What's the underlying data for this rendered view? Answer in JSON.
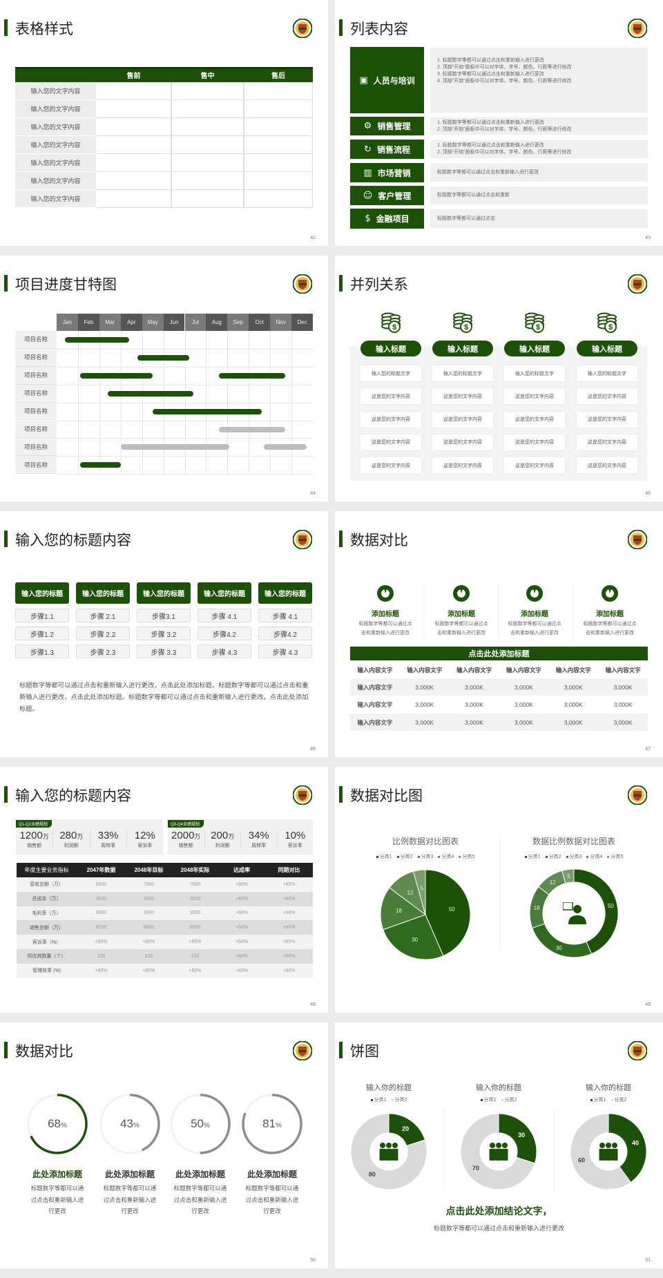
{
  "colors": {
    "primary": "#1b5207",
    "gray_bar": "#bdbdbd",
    "ring_gray": "#8c8c8c",
    "light": "#f2f2f2"
  },
  "logo": "school-emblem-icon",
  "s42": {
    "title": "表格样式",
    "page": "42",
    "headers": [
      "",
      "售前",
      "售中",
      "售后"
    ],
    "rows": [
      "输入您的文字内容",
      "输入您的文字内容",
      "输入您的文字内容",
      "输入您的文字内容",
      "输入您的文字内容",
      "输入您的文字内容",
      "输入您的文字内容"
    ]
  },
  "s43": {
    "title": "列表内容",
    "page": "43",
    "items": [
      {
        "label": "人员与培训",
        "icon": "presentation-icon",
        "lines": [
          "1.  标题数字等都可以通过点击和重新输入进行更改",
          "2.  顶部“开始”面板中可以对字体、字号、颜色、行距等进行修改",
          "3.  标题数字等都可以通过点击和重新输入进行更改",
          "4.  顶部“开始”面板中可以对字体、字号、颜色、行距等进行修改"
        ]
      },
      {
        "label": "销售管理",
        "icon": "user-gear-icon",
        "lines": [
          "1.  标题数字等都可以通过点击和重新输入进行更改",
          "2.  顶部“开始”面板中可以对字体、字号、颜色、行距等进行修改"
        ]
      },
      {
        "label": "销售流程",
        "icon": "cycle-icon",
        "lines": [
          "1.  标题数字等都可以通过点击和重新输入进行更改",
          "2.  顶部“开始”面板中可以对字体、字号、颜色、行距等进行修改"
        ]
      },
      {
        "label": "市场营销",
        "icon": "bar-chart-icon",
        "lines": [
          "标题数字等都可以通过点击和重新输入进行更改"
        ]
      },
      {
        "label": "客户管理",
        "icon": "users-icon",
        "lines": [
          "标题数字等都可以通过点击和重新"
        ]
      },
      {
        "label": "金融项目",
        "icon": "money-hand-icon",
        "lines": [
          "标题数字等都可以通过点击"
        ]
      }
    ]
  },
  "s44": {
    "title": "项目进度甘特图",
    "page": "44"
  },
  "s45": {
    "title": "并列关系",
    "page": "45",
    "columns": [
      {
        "heading": "输入标题",
        "cells": [
          "输入您的标题文字",
          "这是您的文字内容",
          "这是您的文字内容",
          "这是您的文字内容",
          "这是您的文字内容"
        ]
      },
      {
        "heading": "输入标题",
        "cells": [
          "输入您的标题文字",
          "这是您的文字内容",
          "这是您的文字内容",
          "这是您的文字内容",
          "这是您的文字内容"
        ]
      },
      {
        "heading": "输入标题",
        "cells": [
          "输入您的标题文字",
          "这是您的文字内容",
          "这是您的文字内容",
          "这是您的文字内容",
          "这是您的文字内容"
        ]
      },
      {
        "heading": "输入标题",
        "cells": [
          "输入您的标题文字",
          "这是您的文字内容",
          "这是您的文字内容",
          "这是您的文字内容",
          "这是您的文字内容"
        ]
      }
    ]
  },
  "s46": {
    "title": "输入您的标题内容",
    "page": "46",
    "columns": [
      {
        "heading": "输入您的标题",
        "steps": [
          "步骤1.1",
          "步骤1.2",
          "步骤1.3"
        ]
      },
      {
        "heading": "输入您的标题",
        "steps": [
          "步骤 2.1",
          "步骤 2.2",
          "步骤 2.3"
        ]
      },
      {
        "heading": "输入您的标题",
        "steps": [
          "步骤3.1",
          "步骤 3.2",
          "步骤 3.3"
        ]
      },
      {
        "heading": "输入您的标题",
        "steps": [
          "步骤 4.1",
          "步骤4.2",
          "步骤 4.3"
        ]
      },
      {
        "heading": "输入您的标题",
        "steps": [
          "步骤 4.1",
          "步骤4.2",
          "步骤 4.3"
        ]
      }
    ],
    "paragraph": "标题数字等都可以通过点击和重新输入进行更改，点击此处添加标题。标题数字等都可以通过点击和重新输入进行更改，点击此处添加标题。标题数字等都可以通过点击和重新输入进行更改，点击此处添加标题。"
  },
  "s47": {
    "title": "数据对比",
    "page": "47",
    "cards": [
      {
        "title": "添加标题",
        "lines": [
          "标题数字等都可以通过点",
          "击和重新输入进行更改"
        ]
      },
      {
        "title": "添加标题",
        "lines": [
          "标题数字等都可以通过点",
          "击和重新输入进行更改"
        ]
      },
      {
        "title": "添加标题",
        "lines": [
          "标题数字等都可以通过点",
          "击和重新输入进行更改"
        ]
      },
      {
        "title": "添加标题",
        "lines": [
          "标题数字等都可以通过点",
          "击和重新输入进行更改"
        ]
      }
    ],
    "table_title": "点击此处添加标题",
    "headers": [
      "输入内容文字",
      "输入内容文字",
      "输入内容文字",
      "输入内容文字",
      "输入内容文字",
      "输入内容文字"
    ],
    "rows": [
      [
        "输入内容文字",
        "3,000K",
        "3,000K",
        "3,000K",
        "3,000K",
        "3,000K"
      ],
      [
        "输入内容文字",
        "3,000K",
        "3,000K",
        "3,000K",
        "3,000K",
        "3,000K"
      ],
      [
        "输入内容文字",
        "3,000K",
        "3,000K",
        "3,000K",
        "3,000K",
        "3,000K"
      ]
    ]
  },
  "s48": {
    "title": "输入您的标题内容",
    "page": "48",
    "panels": [
      {
        "tag": "Q1-Q2业绩规划",
        "stats": [
          {
            "value": "1200",
            "unit": "万",
            "label": "销售额"
          },
          {
            "value": "280",
            "unit": "万",
            "label": "利润额"
          },
          {
            "value": "33%",
            "unit": "",
            "label": "周转率"
          },
          {
            "value": "12%",
            "unit": "",
            "label": "客诉率"
          }
        ]
      },
      {
        "tag": "Q3-Q4业绩规划",
        "stats": [
          {
            "value": "2000",
            "unit": "万",
            "label": "销售额"
          },
          {
            "value": "200",
            "unit": "万",
            "label": "利润额"
          },
          {
            "value": "34%",
            "unit": "",
            "label": "周转率"
          },
          {
            "value": "10%",
            "unit": "",
            "label": "客诉率"
          }
        ]
      }
    ],
    "headers": [
      "年度主要业务指标",
      "2047年数据",
      "2048年目标",
      "2048年实际",
      "达成率",
      "同期对比"
    ],
    "rows": [
      [
        "营收总额（万）",
        "6000",
        "7000",
        "7000",
        "+60%",
        "+60%"
      ],
      [
        "总成本（万）",
        "3000",
        "3000",
        "3000",
        "+60%",
        "+60%"
      ],
      [
        "毛利率（万）",
        "3000",
        "3000",
        "3000",
        "+60%",
        "+60%"
      ],
      [
        "销售总额（万）",
        "6000",
        "6000",
        "6000",
        "+60%",
        "+60%"
      ],
      [
        "客诉率（%）",
        "+60%",
        "+60%",
        "+60%",
        "+60%",
        "+60%"
      ],
      [
        "供应商数量（个）",
        "100",
        "100",
        "100",
        "+60%",
        "+60%"
      ],
      [
        "管理效率 (%)",
        "+60%",
        "+60%",
        "+60%",
        "+60%",
        "+60%"
      ]
    ]
  },
  "s49": {
    "title": "数据对比图",
    "page": "49"
  },
  "s50": {
    "title": "数据对比",
    "page": "50",
    "items": [
      {
        "percent": 68,
        "value": "68",
        "unit": "%",
        "title": "此处添加标题",
        "lines": [
          "标题数字等都可以通",
          "过点击和重新输入进",
          "行更改"
        ],
        "color": "#1b5207"
      },
      {
        "percent": 43,
        "value": "43",
        "unit": "%",
        "title": "此处添加标题",
        "lines": [
          "标题数字等都可以通",
          "过点击和重新输入进",
          "行更改"
        ],
        "color": "#8c8c8c"
      },
      {
        "percent": 50,
        "value": "50",
        "unit": "%",
        "title": "此处添加标题",
        "lines": [
          "标题数字等都可以通",
          "过点击和重新输入进",
          "行更改"
        ],
        "color": "#8c8c8c"
      },
      {
        "percent": 81,
        "value": "81",
        "unit": "%",
        "title": "此处添加标题",
        "lines": [
          "标题数字等都可以通",
          "过点击和重新输入进",
          "行更改"
        ],
        "color": "#8c8c8c"
      }
    ]
  },
  "s51": {
    "title": "饼图",
    "page": "51",
    "conclusion": "点击此处添加结论文字，",
    "subtitle": "标题数字等都可以通过点击和重新输入进行更改"
  },
  "chart_data": [
    {
      "type": "bar",
      "variant": "gantt",
      "months": [
        "Jan",
        "Feb",
        "Mar",
        "Apr",
        "May",
        "Jun",
        "Jul",
        "Aug",
        "Sep",
        "Oct",
        "Nov",
        "Dec"
      ],
      "categories": [
        "项目名称",
        "项目名称",
        "项目名称",
        "项目名称",
        "项目名称",
        "项目名称",
        "项目名称",
        "项目名称"
      ],
      "tasks": [
        {
          "row": 0,
          "start": 0.4,
          "end": 3.4,
          "status": "active"
        },
        {
          "row": 1,
          "start": 3.8,
          "end": 6.2,
          "status": "active"
        },
        {
          "row": 2,
          "start": 1.1,
          "end": 4.5,
          "status": "active"
        },
        {
          "row": 2,
          "start": 7.6,
          "end": 10.7,
          "status": "active"
        },
        {
          "row": 3,
          "start": 2.4,
          "end": 6.4,
          "status": "active"
        },
        {
          "row": 4,
          "start": 4.5,
          "end": 9.6,
          "status": "active"
        },
        {
          "row": 5,
          "start": 7.6,
          "end": 10.7,
          "status": "planned"
        },
        {
          "row": 6,
          "start": 3.0,
          "end": 8.1,
          "status": "planned"
        },
        {
          "row": 6,
          "start": 9.7,
          "end": 11.7,
          "status": "planned"
        },
        {
          "row": 7,
          "start": 1.1,
          "end": 3.0,
          "status": "active"
        }
      ]
    },
    {
      "type": "pie",
      "title": "比例数据对比图表",
      "categories": [
        "分类1",
        "分类2",
        "分类3",
        "分类4",
        "分类5"
      ],
      "values": [
        50,
        30,
        18,
        12,
        5
      ],
      "colors": [
        "#1b5207",
        "#2f6b1f",
        "#4a7c3a",
        "#5f8a50",
        "#7a9c6c"
      ],
      "legend": "top"
    },
    {
      "type": "pie",
      "variant": "donut",
      "title": "数据比例数据对比图表",
      "categories": [
        "分类1",
        "分类2",
        "分类3",
        "分类4",
        "分类5"
      ],
      "values": [
        50,
        30,
        18,
        12,
        5
      ],
      "colors": [
        "#1b5207",
        "#2f6b1f",
        "#4a7c3a",
        "#5f8a50",
        "#7a9c6c"
      ],
      "legend": "top"
    },
    {
      "type": "pie",
      "variant": "donut",
      "title": "输入你的标题",
      "categories": [
        "分类1",
        "分类2"
      ],
      "values": [
        20,
        80
      ],
      "colors": [
        "#1b5207",
        "#d9d9d9"
      ],
      "legend": "top"
    },
    {
      "type": "pie",
      "variant": "donut",
      "title": "输入你的标题",
      "categories": [
        "分类1",
        "分类2"
      ],
      "values": [
        30,
        70
      ],
      "colors": [
        "#1b5207",
        "#d9d9d9"
      ],
      "legend": "top"
    },
    {
      "type": "pie",
      "variant": "donut",
      "title": "输入你的标题",
      "categories": [
        "分类1",
        "分类2"
      ],
      "values": [
        40,
        60
      ],
      "colors": [
        "#1b5207",
        "#d9d9d9"
      ],
      "legend": "top"
    }
  ]
}
